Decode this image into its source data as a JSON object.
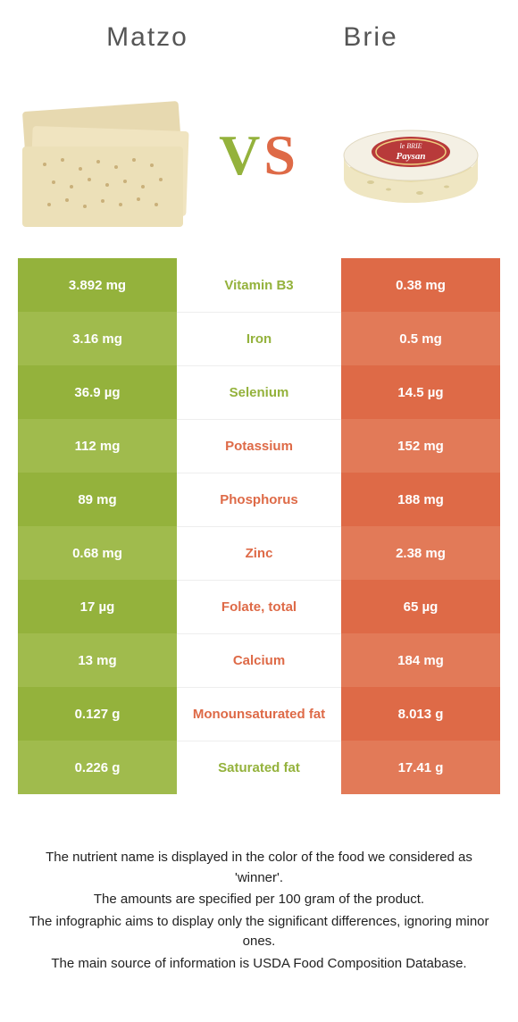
{
  "colors": {
    "green": "#94b23c",
    "orange": "#de6a47",
    "green_alt": "#a0bb4d",
    "orange_alt": "#e27a58",
    "text_gray": "#555555"
  },
  "header": {
    "left_name": "Matzo",
    "right_name": "Brie",
    "vs_v": "V",
    "vs_s": "S"
  },
  "rows": [
    {
      "nutrient": "Vitamin B3",
      "left": "3.892 mg",
      "right": "0.38 mg",
      "winner": "left"
    },
    {
      "nutrient": "Iron",
      "left": "3.16 mg",
      "right": "0.5 mg",
      "winner": "left"
    },
    {
      "nutrient": "Selenium",
      "left": "36.9 µg",
      "right": "14.5 µg",
      "winner": "left"
    },
    {
      "nutrient": "Potassium",
      "left": "112 mg",
      "right": "152 mg",
      "winner": "right"
    },
    {
      "nutrient": "Phosphorus",
      "left": "89 mg",
      "right": "188 mg",
      "winner": "right"
    },
    {
      "nutrient": "Zinc",
      "left": "0.68 mg",
      "right": "2.38 mg",
      "winner": "right"
    },
    {
      "nutrient": "Folate, total",
      "left": "17 µg",
      "right": "65 µg",
      "winner": "right"
    },
    {
      "nutrient": "Calcium",
      "left": "13 mg",
      "right": "184 mg",
      "winner": "right"
    },
    {
      "nutrient": "Monounsaturated fat",
      "left": "0.127 g",
      "right": "8.013 g",
      "winner": "right"
    },
    {
      "nutrient": "Saturated fat",
      "left": "0.226 g",
      "right": "17.41 g",
      "winner": "left"
    }
  ],
  "footer": {
    "l1": "The nutrient name is displayed in the color of the food we considered as 'winner'.",
    "l2": "The amounts are specified per 100 gram of the product.",
    "l3": "The infographic aims to display only the significant differences, ignoring minor ones.",
    "l4": "The main source of information is USDA Food Composition Database."
  }
}
